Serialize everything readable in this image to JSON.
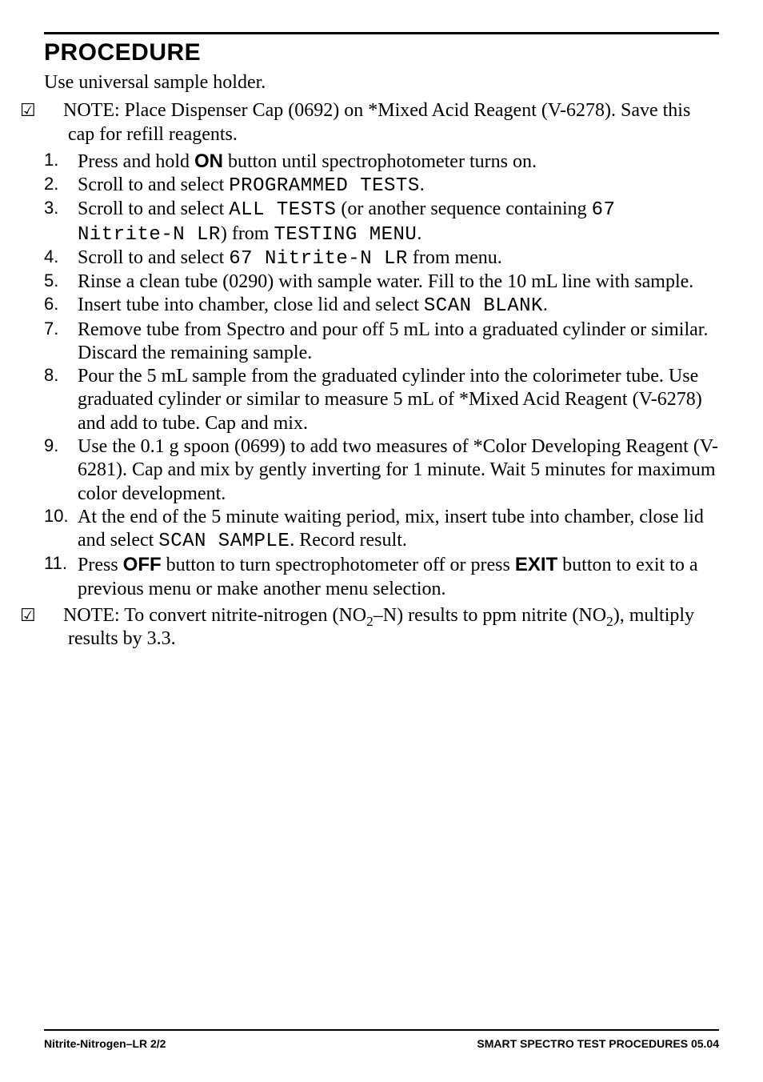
{
  "heading": "PROCEDURE",
  "intro": "Use universal sample holder.",
  "note1_prefix": "NOTE:",
  "note1_body": "  Place Dispenser Cap (0692) on *Mixed Acid Reagent (V-6278). Save this cap for refill reagents.",
  "steps": {
    "s1_a": "Press and hold ",
    "s1_btn": "ON",
    "s1_b": " button until spectrophotometer turns on.",
    "s2_a": "Scroll to and select ",
    "s2_mono": "PROGRAMMED TESTS",
    "s2_b": ".",
    "s3_a": "Scroll to and select ",
    "s3_mono1": "ALL TESTS",
    "s3_b": " (or another sequence containing ",
    "s3_mono2": "67 Nitrite-N LR",
    "s3_c": ") from ",
    "s3_mono3": "TESTING MENU",
    "s3_d": ".",
    "s4_a": "Scroll to and select ",
    "s4_mono": "67 Nitrite-N LR",
    "s4_b": " from menu.",
    "s5": "Rinse a clean tube (0290) with sample water. Fill to the 10 mL line with sample.",
    "s6_a": "Insert tube into chamber, close lid and select ",
    "s6_mono": "SCAN BLANK",
    "s6_b": ".",
    "s7": "Remove tube from Spectro and pour off 5 mL into a graduated cylinder or similar. Discard the remaining sample.",
    "s8": "Pour the 5 mL sample from the graduated cylinder into the colorimeter tube. Use graduated cylinder or similar to measure 5 mL of *Mixed Acid Reagent (V-6278) and add to tube. Cap and mix.",
    "s9": "Use the 0.1 g spoon (0699) to add two measures of *Color Developing Reagent (V-6281). Cap and mix by gently inverting for 1 minute. Wait 5 minutes for maximum color development.",
    "s10_a": "At the end of the 5 minute waiting period, mix, insert tube into chamber, close lid and select ",
    "s10_mono": "SCAN SAMPLE",
    "s10_b": ". Record result.",
    "s11_a": "Press ",
    "s11_btn1": "OFF",
    "s11_b": " button to turn spectrophotometer off or press ",
    "s11_btn2": "EXIT",
    "s11_c": " button to exit to a previous menu or make another menu selection."
  },
  "note2_prefix": "NOTE:",
  "note2_a": "  To convert nitrite-nitrogen (NO",
  "note2_sub1": "2",
  "note2_b": "–N) results to ppm nitrite (NO",
  "note2_sub2": "2",
  "note2_c": "), multiply results by 3.3.",
  "footer_left": "Nitrite-Nitrogen–LR 2/2",
  "footer_right": "SMART SPECTRO TEST PROCEDURES  05.04",
  "checkbox_glyph": "☑"
}
